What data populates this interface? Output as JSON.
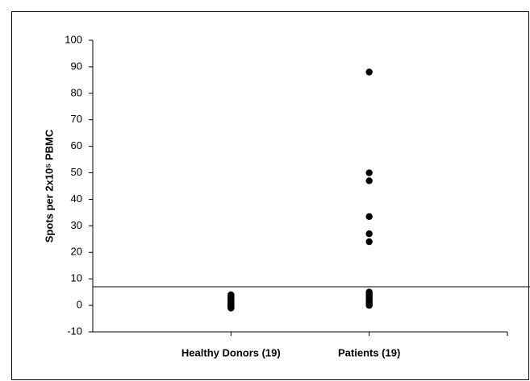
{
  "chart_data": {
    "type": "scatter",
    "y_label": "Spots per 2x10⁵ PBMC",
    "xlim": [
      0,
      3
    ],
    "xticks": [
      {
        "value": 1,
        "label": "Healthy Donors (19)"
      },
      {
        "value": 2,
        "label": "Patients (19)"
      }
    ],
    "ylim": [
      -10,
      100
    ],
    "yticks": [
      -10,
      0,
      10,
      20,
      30,
      40,
      50,
      60,
      70,
      80,
      90,
      100
    ],
    "threshold": 7,
    "color": "#000000",
    "series": [
      {
        "x": [
          1,
          1,
          1,
          1,
          1,
          1,
          1,
          1,
          1,
          1,
          1,
          1,
          1,
          1,
          1,
          1,
          1,
          1,
          1
        ],
        "values": [
          4,
          3.5,
          3,
          3,
          2.5,
          2,
          2,
          1.5,
          1,
          1,
          0.5,
          0.5,
          0,
          0,
          0,
          -0.5,
          -0.5,
          -1,
          -1
        ]
      },
      {
        "x": [
          2,
          2,
          2,
          2,
          2,
          2,
          2,
          2,
          2,
          2,
          2,
          2,
          2,
          2,
          2,
          2,
          2,
          2,
          2
        ],
        "values": [
          88,
          50,
          47,
          33.5,
          27,
          24,
          5,
          4.5,
          4,
          3.5,
          3,
          2.5,
          2,
          1.5,
          1,
          1,
          0.5,
          0,
          0
        ]
      }
    ]
  }
}
